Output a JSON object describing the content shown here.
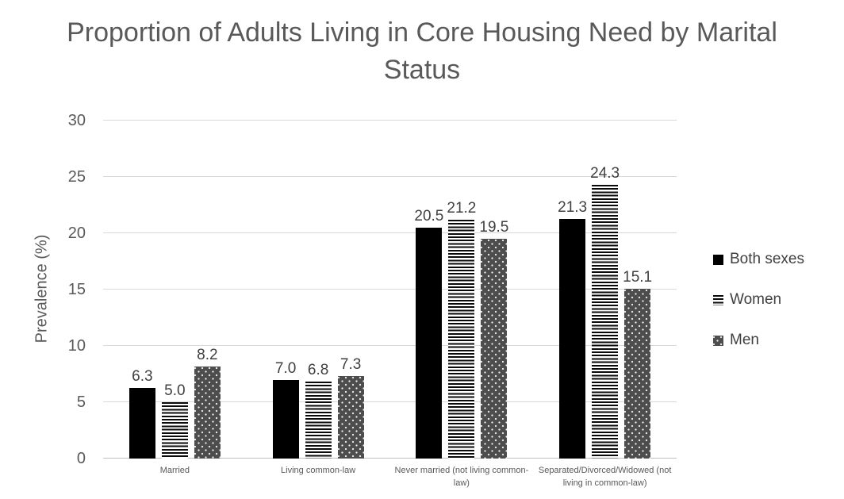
{
  "chart_data": {
    "type": "bar",
    "title": "Proportion of Adults Living in Core Housing Need by Marital Status",
    "xlabel": "",
    "ylabel": "Prevalence (%)",
    "ylim": [
      0,
      30
    ],
    "yticks": [
      0,
      5,
      10,
      15,
      20,
      25,
      30
    ],
    "grid": true,
    "legend_position": "right",
    "data_labels": true,
    "data_label_decimals": 1,
    "categories": [
      "Married",
      "Living common-law",
      "Never married (not living common-law)",
      "Separated/Divorced/Widowed (not living in common-law)"
    ],
    "category_label_lines": [
      [
        "Married"
      ],
      [
        "Living common-law"
      ],
      [
        "Never married (not living common-",
        "law)"
      ],
      [
        "Separated/Divorced/Widowed (not",
        "living in common-law)"
      ]
    ],
    "series": [
      {
        "name": "Both sexes",
        "pattern": "solid",
        "values": [
          6.3,
          7.0,
          20.5,
          21.3
        ]
      },
      {
        "name": "Women",
        "pattern": "hstripes",
        "values": [
          5.0,
          6.8,
          21.2,
          24.3
        ]
      },
      {
        "name": "Men",
        "pattern": "dots",
        "values": [
          8.2,
          7.3,
          19.5,
          15.1
        ]
      }
    ],
    "colors": {
      "bar_solid": "#000000",
      "bar_stripe": "#0a0a0a",
      "bar_dots_bg": "#4d4d4d",
      "title_text": "#595959",
      "axis_text": "#595959",
      "data_label_text": "#404040",
      "gridline": "#d9d9d9",
      "background": "#ffffff"
    }
  }
}
